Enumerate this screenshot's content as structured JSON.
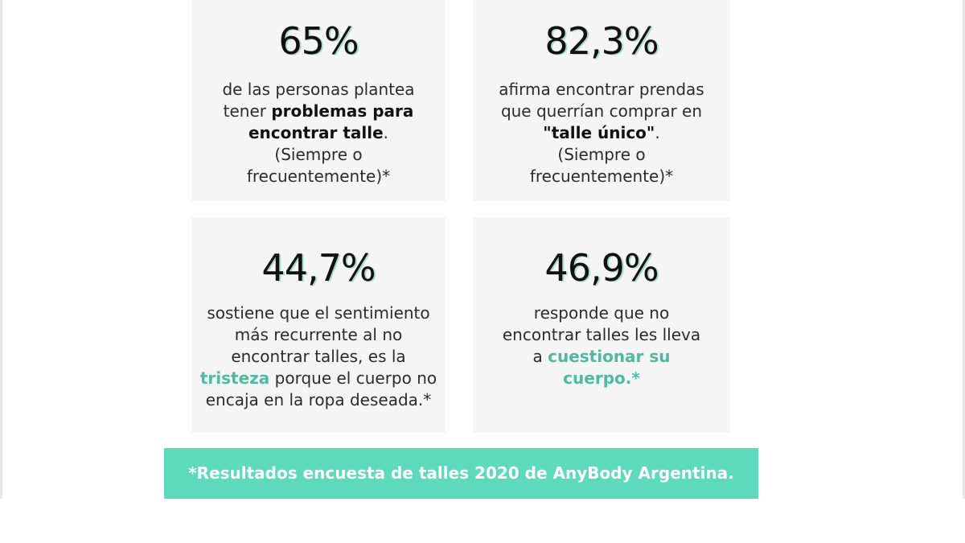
{
  "cards": [
    {
      "stat": "65%",
      "lines": [
        {
          "plain": "de las personas plantea"
        },
        {
          "plain": "tener ",
          "bold": "problemas para"
        },
        {
          "bold": "encontrar talle",
          "tail": "."
        },
        {
          "plain": "(Siempre o"
        },
        {
          "plain": "frecuentemente)*"
        }
      ]
    },
    {
      "stat": "82,3%",
      "lines": [
        {
          "plain": "afirma encontrar prendas"
        },
        {
          "plain": "que querrían comprar en"
        },
        {
          "bold": "\"talle único\"",
          "tail": "."
        },
        {
          "plain": "(Siempre o"
        },
        {
          "plain": "frecuentemente)*"
        }
      ]
    },
    {
      "stat": "44,7%",
      "lines": [
        {
          "plain": "sostiene que el sentimiento"
        },
        {
          "plain": "más recurrente al no"
        },
        {
          "plain": "encontrar talles, es la"
        },
        {
          "green": "tristeza",
          "tail": " porque el cuerpo no"
        },
        {
          "plain": "encaja en la ropa deseada.*"
        }
      ]
    },
    {
      "stat": "46,9%",
      "lines": [
        {
          "plain": "responde que no"
        },
        {
          "plain": "encontrar talles les lleva"
        },
        {
          "plain": "a ",
          "green": "cuestionar su"
        },
        {
          "green": "cuerpo.*"
        }
      ]
    }
  ],
  "footer": "*Resultados encuesta de talles 2020 de AnyBody Argentina.",
  "colors": {
    "accent": "#5dd9bb",
    "highlight_text": "#4fb9a4",
    "card_bg": "#f5f5f5"
  }
}
